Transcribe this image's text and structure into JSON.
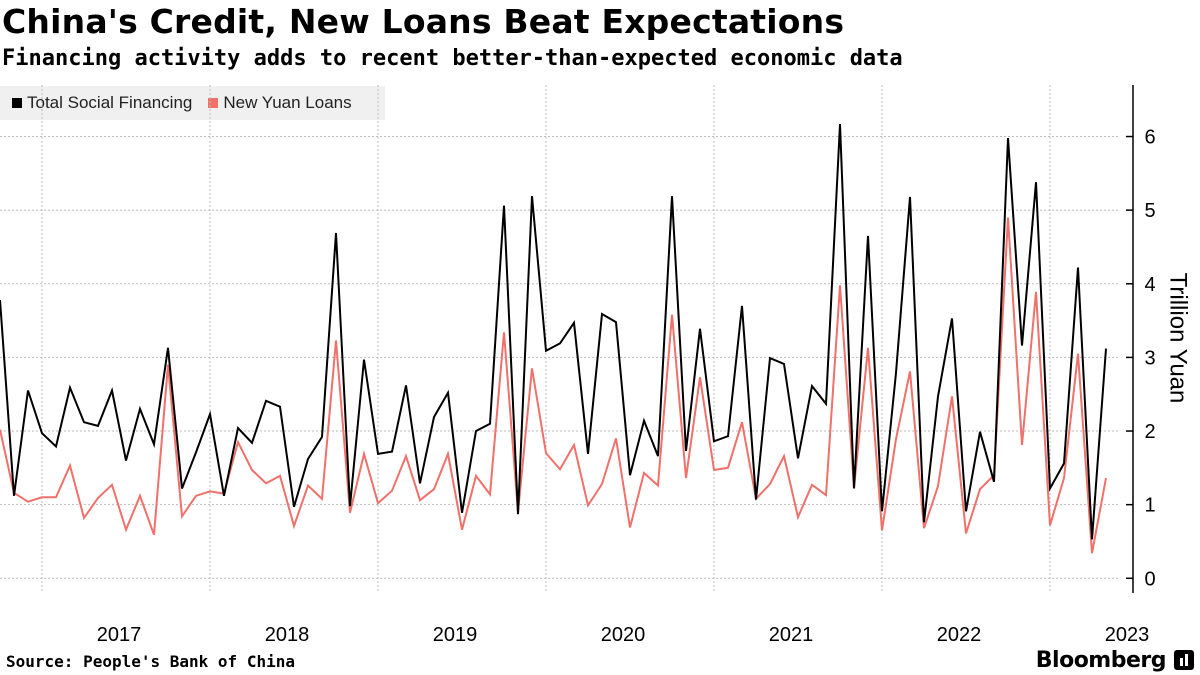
{
  "header": {
    "title": "China's Credit, New Loans Beat Expectations",
    "subtitle": "Financing activity adds to recent better-than-expected economic data"
  },
  "footer": {
    "source": "Source: People's Bank of China",
    "brand": "Bloomberg"
  },
  "colors": {
    "tsf": "#000000",
    "loans": "#f0706a",
    "grid": "#bbbbbb",
    "legend_bg": "#f0f0f0"
  },
  "chart_data": {
    "type": "line",
    "title": "China's Credit, New Loans Beat Expectations",
    "subtitle": "Financing activity adds to recent better-than-expected economic data",
    "ylabel": "Trillion Yuan",
    "xlabel": "",
    "ylim": [
      -0.2,
      6.7
    ],
    "yticks": [
      0,
      1,
      2,
      3,
      4,
      5,
      6
    ],
    "x_start": "2016-10",
    "year_labels": [
      "2017",
      "2018",
      "2019",
      "2020",
      "2021",
      "2022",
      "2023"
    ],
    "grid": true,
    "legend_position": "top-left",
    "series": [
      {
        "name": "Total Social Financing",
        "color": "#000000",
        "values": [
          3.78,
          1.12,
          2.55,
          1.97,
          1.79,
          2.59,
          2.12,
          2.07,
          2.55,
          1.6,
          2.3,
          1.82,
          3.13,
          1.22,
          1.71,
          2.23,
          1.12,
          2.04,
          1.84,
          2.41,
          2.33,
          0.97,
          1.62,
          1.92,
          4.69,
          0.98,
          2.97,
          1.69,
          1.72,
          2.62,
          1.29,
          2.19,
          2.52,
          0.89,
          2.0,
          2.1,
          5.06,
          0.87,
          5.19,
          3.09,
          3.19,
          3.47,
          1.69,
          3.59,
          3.48,
          1.4,
          2.14,
          1.66,
          5.19,
          1.73,
          3.39,
          1.86,
          1.93,
          3.7,
          1.07,
          2.99,
          2.91,
          1.63,
          2.61,
          2.37,
          6.17,
          1.22,
          4.65,
          0.91,
          2.79,
          5.18,
          0.76,
          2.47,
          3.53,
          0.91,
          1.99,
          1.31,
          5.98,
          3.16,
          5.38,
          1.22,
          1.56,
          4.22,
          0.53,
          3.12
        ]
      },
      {
        "name": "New Yuan Loans",
        "color": "#f0706a",
        "values": [
          2.02,
          1.16,
          1.04,
          1.1,
          1.1,
          1.53,
          0.82,
          1.09,
          1.27,
          0.66,
          1.12,
          0.59,
          2.9,
          0.84,
          1.12,
          1.18,
          1.15,
          1.85,
          1.47,
          1.29,
          1.39,
          0.71,
          1.26,
          1.08,
          3.23,
          0.89,
          1.69,
          1.02,
          1.19,
          1.66,
          1.06,
          1.21,
          1.69,
          0.66,
          1.39,
          1.14,
          3.34,
          0.9,
          2.85,
          1.7,
          1.48,
          1.81,
          0.99,
          1.28,
          1.9,
          0.69,
          1.43,
          1.26,
          3.58,
          1.36,
          2.73,
          1.47,
          1.5,
          2.12,
          1.08,
          1.28,
          1.66,
          0.83,
          1.27,
          1.13,
          3.98,
          1.23,
          3.13,
          0.65,
          1.89,
          2.81,
          0.68,
          1.25,
          2.47,
          0.61,
          1.21,
          1.4,
          4.9,
          1.81,
          3.89,
          0.72,
          1.36,
          3.05,
          0.34,
          1.36
        ]
      }
    ]
  }
}
